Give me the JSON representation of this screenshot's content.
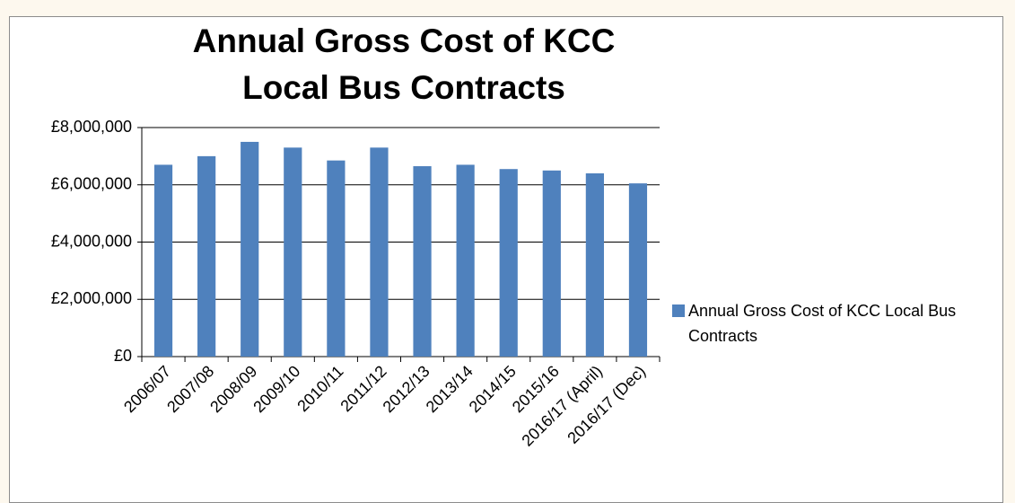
{
  "chart_data": {
    "type": "bar",
    "title": "Annual Gross Cost of KCC Local Bus Contracts",
    "categories": [
      "2006/07",
      "2007/08",
      "2008/09",
      "2009/10",
      "2010/11",
      "2011/12",
      "2012/13",
      "2013/14",
      "2014/15",
      "2015/16",
      "2016/17 (April)",
      "2016/17 (Dec)"
    ],
    "series": [
      {
        "name": "Annual Gross Cost of KCC Local Bus Contracts",
        "color": "#4f81bd",
        "values": [
          6700000,
          7000000,
          7500000,
          7300000,
          6850000,
          7300000,
          6650000,
          6700000,
          6550000,
          6500000,
          6400000,
          6050000
        ]
      }
    ],
    "ylim": [
      0,
      8000000
    ],
    "yticks": [
      {
        "value": 0,
        "label": "£0"
      },
      {
        "value": 2000000,
        "label": "£2,000,000"
      },
      {
        "value": 4000000,
        "label": "£4,000,000"
      },
      {
        "value": 6000000,
        "label": "£6,000,000"
      },
      {
        "value": 8000000,
        "label": "£8,000,000"
      }
    ],
    "grid": true,
    "legend": "right"
  }
}
